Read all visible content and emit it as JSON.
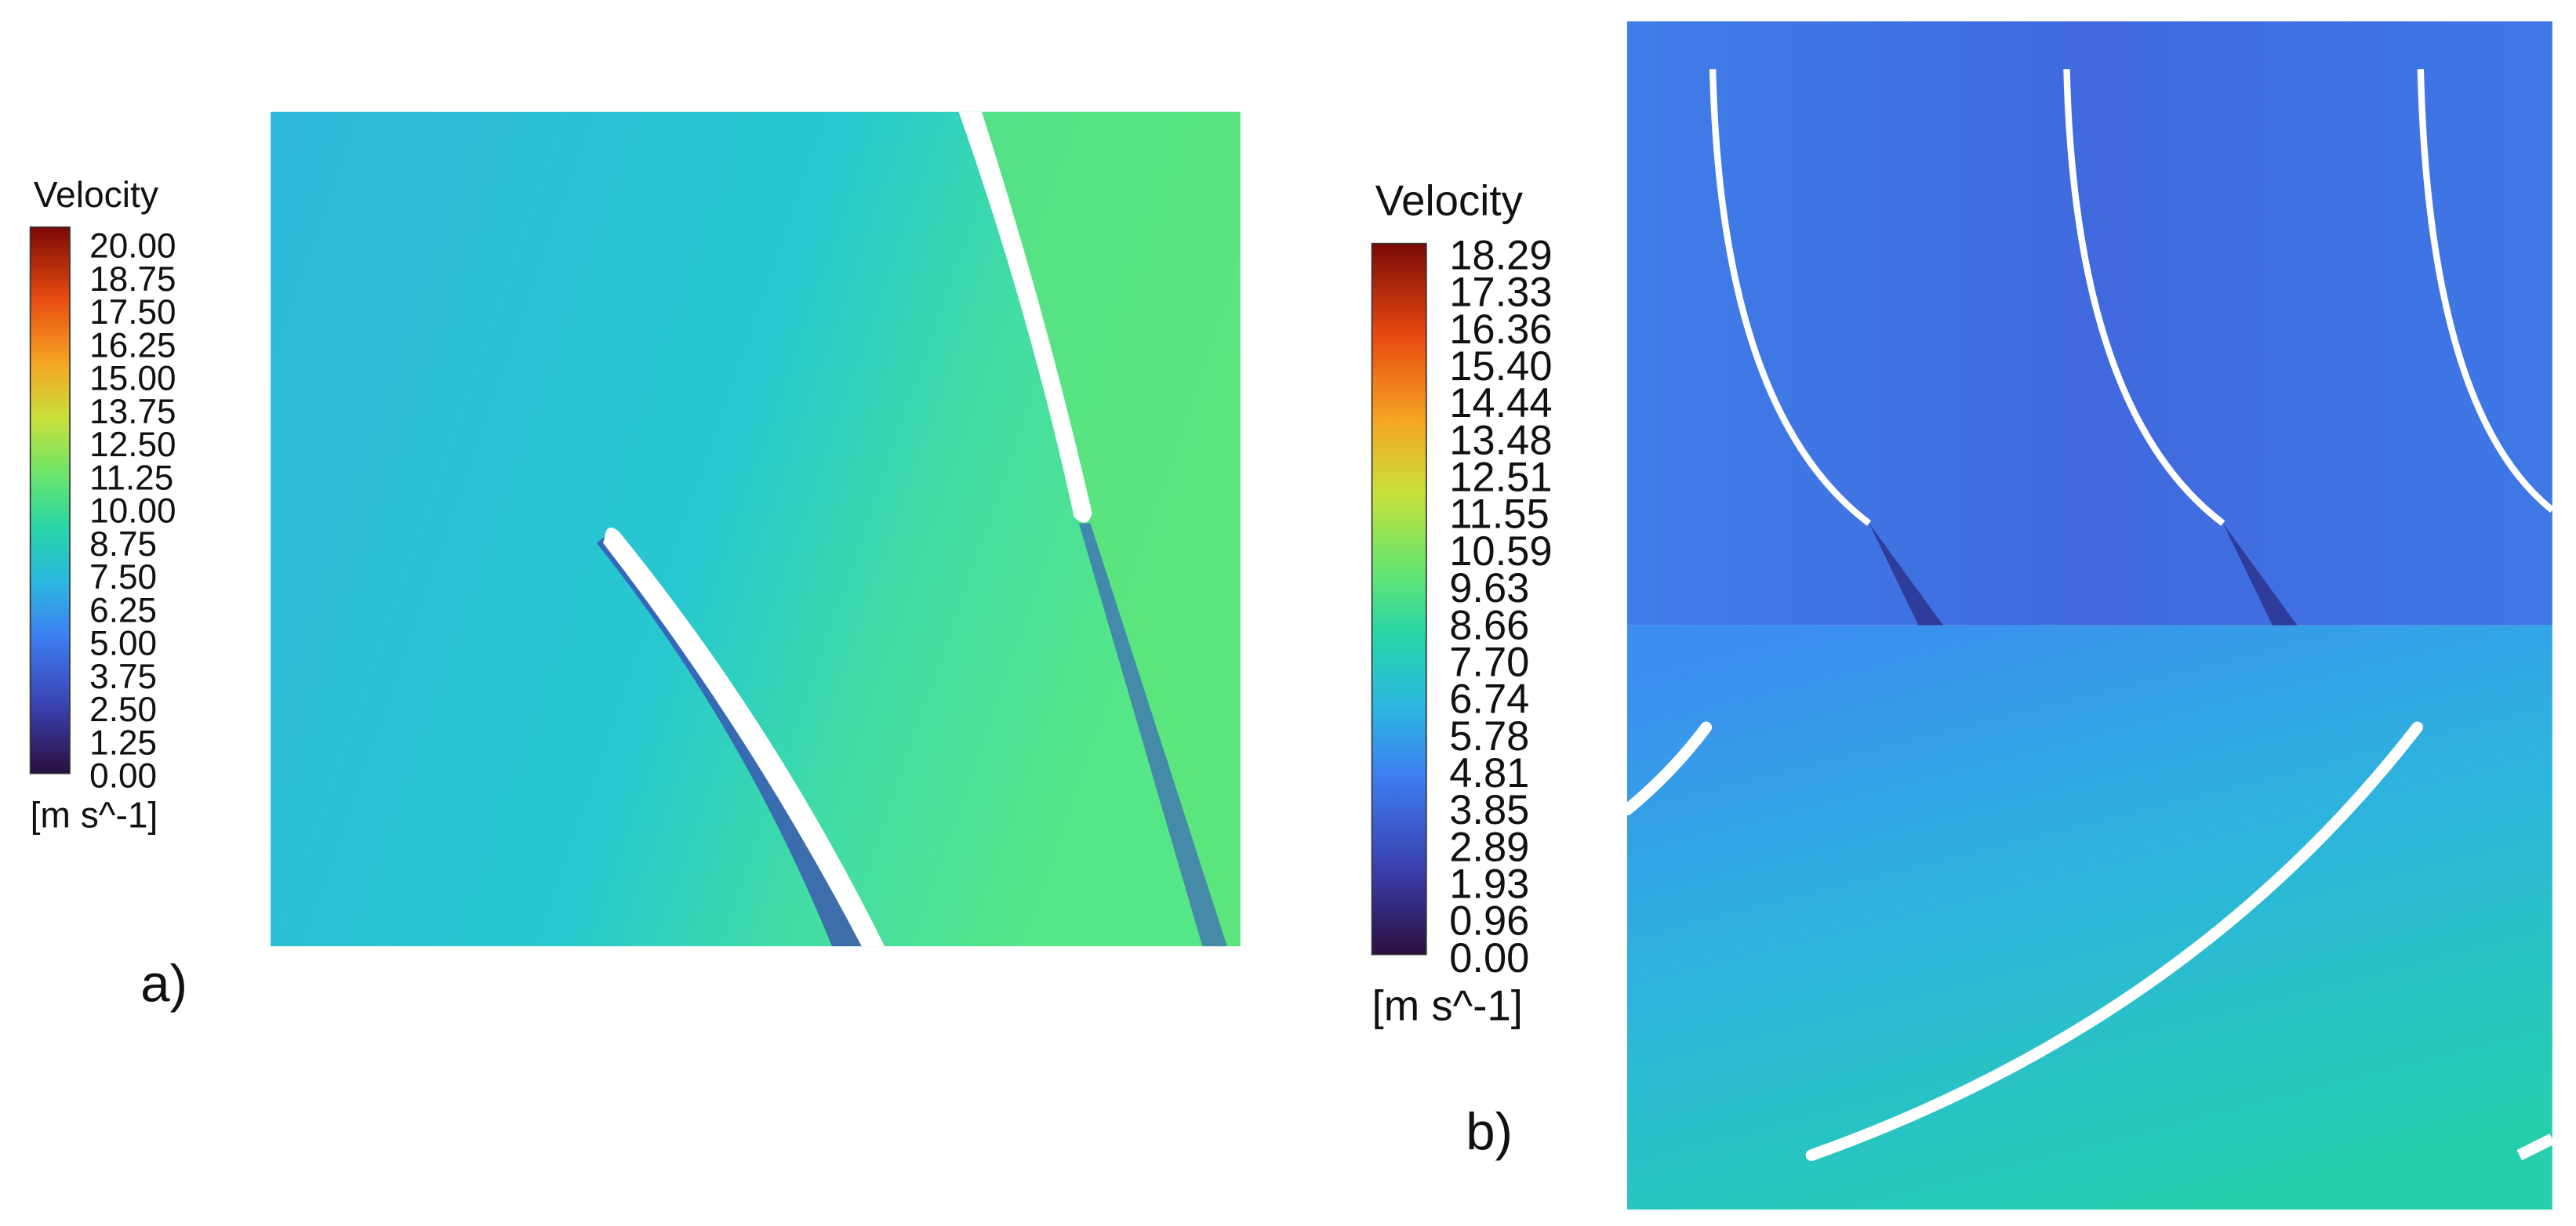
{
  "panels": [
    {
      "label": "a)",
      "colorbar": {
        "title": "Velocity",
        "unit": "[m s^-1]",
        "ticks": [
          "20.00",
          "18.75",
          "17.50",
          "16.25",
          "15.00",
          "13.75",
          "12.50",
          "11.25",
          "10.00",
          "8.75",
          "7.50",
          "6.25",
          "5.00",
          "3.75",
          "2.50",
          "1.25",
          "0.00"
        ]
      }
    },
    {
      "label": "b)",
      "colorbar": {
        "title": "Velocity",
        "unit": "[m s^-1]",
        "ticks": [
          "18.29",
          "17.33",
          "16.36",
          "15.40",
          "14.44",
          "13.48",
          "12.51",
          "11.55",
          "10.59",
          "9.63",
          "8.66",
          "7.70",
          "6.74",
          "5.78",
          "4.81",
          "3.85",
          "2.89",
          "1.93",
          "0.96",
          "0.00"
        ]
      }
    }
  ]
}
